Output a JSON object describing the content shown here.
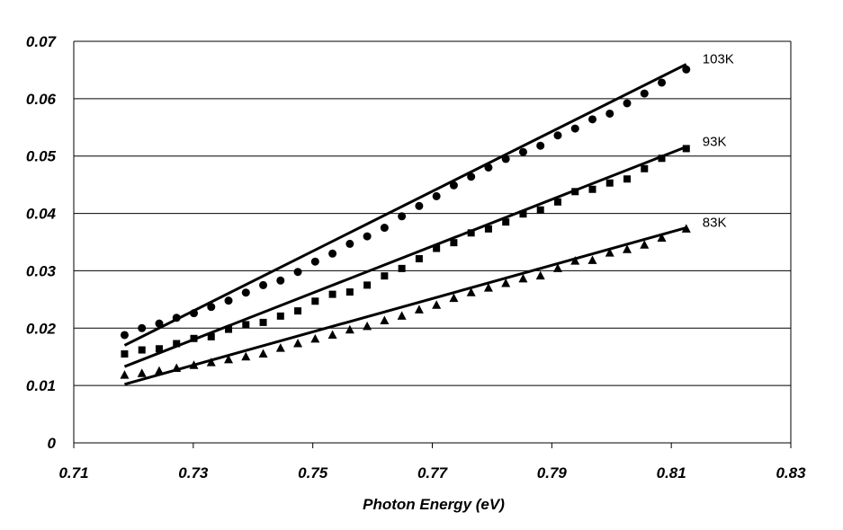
{
  "chart_data": {
    "type": "scatter",
    "title": "",
    "xlabel": "Photon Energy (eV)",
    "ylabel": "",
    "xlim": [
      0.71,
      0.83
    ],
    "ylim": [
      0,
      0.07
    ],
    "x_ticks": [
      "0.71",
      "0.73",
      "0.75",
      "0.77",
      "0.79",
      "0.81",
      "0.83"
    ],
    "y_ticks": [
      "0",
      "0.01",
      "0.02",
      "0.03",
      "0.04",
      "0.05",
      "0.06",
      "0.07"
    ],
    "grid": "horizontal",
    "x": [
      0.7185,
      0.7214,
      0.7243,
      0.7272,
      0.7301,
      0.733,
      0.7359,
      0.7388,
      0.7417,
      0.7446,
      0.7475,
      0.7504,
      0.7533,
      0.7562,
      0.7591,
      0.762,
      0.7649,
      0.7678,
      0.7707,
      0.7736,
      0.7765,
      0.7794,
      0.7823,
      0.7852,
      0.7881,
      0.791,
      0.7939,
      0.7968,
      0.7997,
      0.8026,
      0.8055,
      0.8084,
      0.8125
    ],
    "series": [
      {
        "name": "103K",
        "marker": "circle",
        "values": [
          0.0188,
          0.02,
          0.0208,
          0.0218,
          0.0226,
          0.0237,
          0.0248,
          0.0262,
          0.0275,
          0.0283,
          0.0298,
          0.0316,
          0.033,
          0.0347,
          0.036,
          0.0375,
          0.0395,
          0.0413,
          0.043,
          0.0449,
          0.0464,
          0.048,
          0.0495,
          0.0507,
          0.0518,
          0.0536,
          0.0548,
          0.0564,
          0.0574,
          0.0592,
          0.0609,
          0.0628,
          0.0651
        ],
        "fit": [
          [
            0.7185,
            0.017
          ],
          [
            0.8125,
            0.066
          ]
        ]
      },
      {
        "name": "93K",
        "marker": "square",
        "values": [
          0.0155,
          0.0162,
          0.0164,
          0.0173,
          0.0182,
          0.0185,
          0.0198,
          0.0206,
          0.021,
          0.0221,
          0.023,
          0.0247,
          0.0259,
          0.0263,
          0.0275,
          0.0291,
          0.0304,
          0.0321,
          0.0339,
          0.0349,
          0.0366,
          0.0373,
          0.0385,
          0.0399,
          0.0406,
          0.042,
          0.0438,
          0.0442,
          0.0453,
          0.046,
          0.0478,
          0.0496,
          0.0513
        ],
        "fit": [
          [
            0.7185,
            0.0133
          ],
          [
            0.8125,
            0.0516
          ]
        ]
      },
      {
        "name": "83K",
        "marker": "triangle",
        "values": [
          0.0118,
          0.0121,
          0.0125,
          0.013,
          0.0135,
          0.014,
          0.0145,
          0.015,
          0.0155,
          0.0165,
          0.0173,
          0.0181,
          0.0188,
          0.0197,
          0.0203,
          0.0213,
          0.0221,
          0.0232,
          0.024,
          0.0252,
          0.0262,
          0.027,
          0.0278,
          0.0286,
          0.0291,
          0.0304,
          0.0317,
          0.0318,
          0.0331,
          0.0337,
          0.0345,
          0.0357,
          0.0373
        ],
        "fit": [
          [
            0.7185,
            0.0102
          ],
          [
            0.8125,
            0.0375
          ]
        ]
      }
    ]
  }
}
